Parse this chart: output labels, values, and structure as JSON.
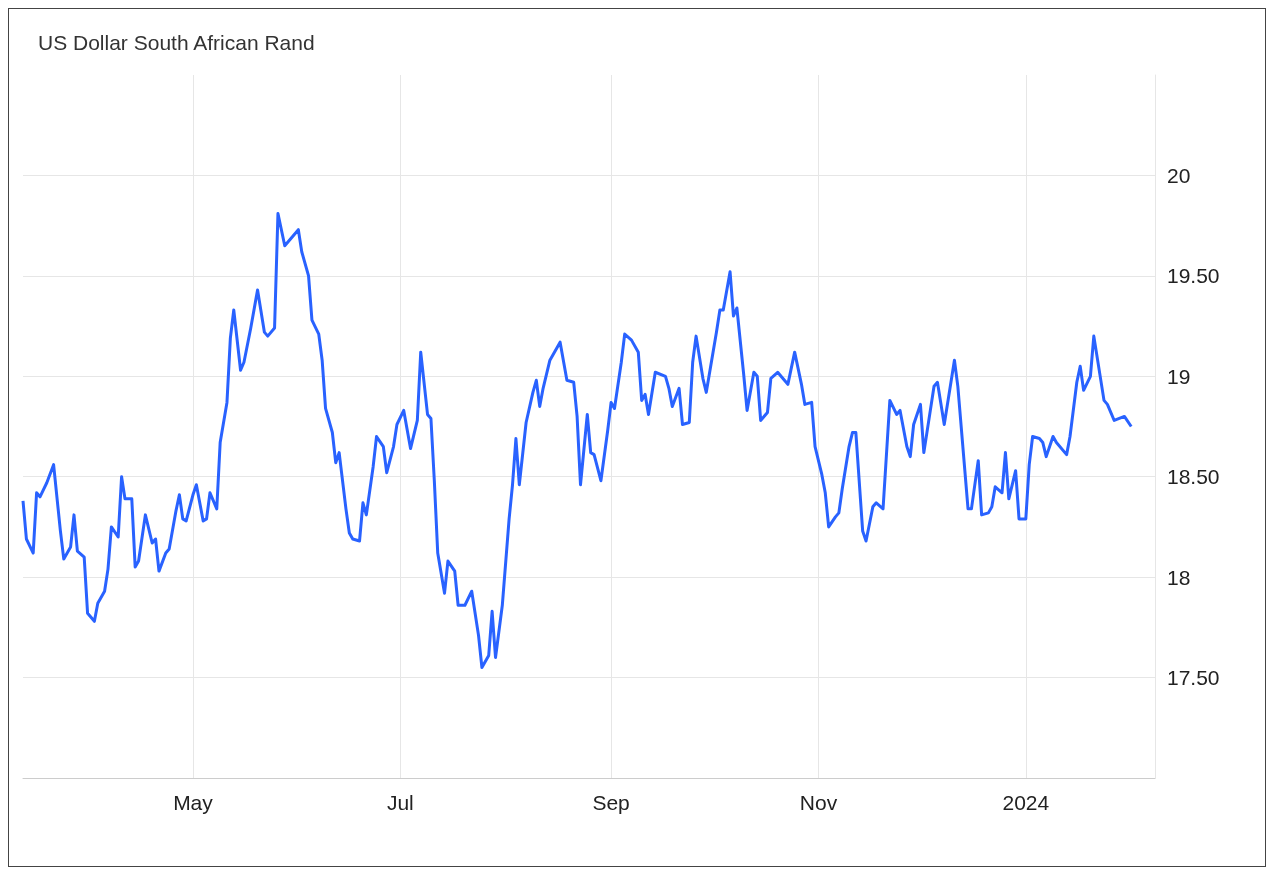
{
  "chart_data": {
    "type": "line",
    "title": "US Dollar South African Rand",
    "color": "#2962ff",
    "grid": true,
    "x": [
      "2023-03-12",
      "2023-03-13",
      "2023-03-15",
      "2023-03-16",
      "2023-03-17",
      "2023-03-19",
      "2023-03-21",
      "2023-03-23",
      "2023-03-24",
      "2023-03-26",
      "2023-03-27",
      "2023-03-28",
      "2023-03-30",
      "2023-03-31",
      "2023-04-02",
      "2023-04-03",
      "2023-04-05",
      "2023-04-06",
      "2023-04-07",
      "2023-04-09",
      "2023-04-10",
      "2023-04-11",
      "2023-04-13",
      "2023-04-14",
      "2023-04-15",
      "2023-04-17",
      "2023-04-19",
      "2023-04-20",
      "2023-04-21",
      "2023-04-23",
      "2023-04-24",
      "2023-04-26",
      "2023-04-27",
      "2023-04-28",
      "2023-04-29",
      "2023-05-01",
      "2023-05-02",
      "2023-05-04",
      "2023-05-05",
      "2023-05-06",
      "2023-05-08",
      "2023-05-09",
      "2023-05-11",
      "2023-05-12",
      "2023-05-13",
      "2023-05-15",
      "2023-05-16",
      "2023-05-18",
      "2023-05-20",
      "2023-05-22",
      "2023-05-23",
      "2023-05-25",
      "2023-05-26",
      "2023-05-28",
      "2023-06-01",
      "2023-06-02",
      "2023-06-04",
      "2023-06-05",
      "2023-06-07",
      "2023-06-08",
      "2023-06-09",
      "2023-06-11",
      "2023-06-12",
      "2023-06-13",
      "2023-06-15",
      "2023-06-16",
      "2023-06-17",
      "2023-06-19",
      "2023-06-20",
      "2023-06-21",
      "2023-06-23",
      "2023-06-24",
      "2023-06-26",
      "2023-06-27",
      "2023-06-29",
      "2023-06-30",
      "2023-07-02",
      "2023-07-04",
      "2023-07-06",
      "2023-07-07",
      "2023-07-09",
      "2023-07-10",
      "2023-07-11",
      "2023-07-12",
      "2023-07-14",
      "2023-07-15",
      "2023-07-17",
      "2023-07-18",
      "2023-07-20",
      "2023-07-22",
      "2023-07-24",
      "2023-07-25",
      "2023-07-27",
      "2023-07-28",
      "2023-07-29",
      "2023-07-31",
      "2023-08-02",
      "2023-08-03",
      "2023-08-04",
      "2023-08-05",
      "2023-08-07",
      "2023-08-09",
      "2023-08-10",
      "2023-08-11",
      "2023-08-12",
      "2023-08-14",
      "2023-08-17",
      "2023-08-19",
      "2023-08-21",
      "2023-08-22",
      "2023-08-23",
      "2023-08-25",
      "2023-08-26",
      "2023-08-27",
      "2023-08-29",
      "2023-08-31",
      "2023-09-01",
      "2023-09-02",
      "2023-09-04",
      "2023-09-05",
      "2023-09-07",
      "2023-09-09",
      "2023-09-10",
      "2023-09-11",
      "2023-09-12",
      "2023-09-14",
      "2023-09-17",
      "2023-09-18",
      "2023-09-19",
      "2023-09-21",
      "2023-09-22",
      "2023-09-24",
      "2023-09-25",
      "2023-09-26",
      "2023-09-28",
      "2023-09-29",
      "2023-10-02",
      "2023-10-03",
      "2023-10-04",
      "2023-10-06",
      "2023-10-07",
      "2023-10-08",
      "2023-10-10",
      "2023-10-11",
      "2023-10-13",
      "2023-10-14",
      "2023-10-15",
      "2023-10-17",
      "2023-10-18",
      "2023-10-20",
      "2023-10-23",
      "2023-10-25",
      "2023-10-27",
      "2023-10-28",
      "2023-10-30",
      "2023-10-31",
      "2023-11-02",
      "2023-11-03",
      "2023-11-04",
      "2023-11-06",
      "2023-11-07",
      "2023-11-08",
      "2023-11-10",
      "2023-11-11",
      "2023-11-12",
      "2023-11-14",
      "2023-11-15",
      "2023-11-17",
      "2023-11-18",
      "2023-11-20",
      "2023-11-22",
      "2023-11-24",
      "2023-11-25",
      "2023-11-27",
      "2023-11-28",
      "2023-11-29",
      "2023-12-01",
      "2023-12-02",
      "2023-12-05",
      "2023-12-06",
      "2023-12-08",
      "2023-12-11",
      "2023-12-12",
      "2023-12-15",
      "2023-12-16",
      "2023-12-18",
      "2023-12-19",
      "2023-12-21",
      "2023-12-22",
      "2023-12-23",
      "2023-12-25",
      "2023-12-26",
      "2023-12-27",
      "2023-12-29",
      "2023-12-30",
      "2024-01-01",
      "2024-01-02",
      "2024-01-03",
      "2024-01-05",
      "2024-01-06",
      "2024-01-07",
      "2024-01-09",
      "2024-01-10",
      "2024-01-13",
      "2024-01-14",
      "2024-01-16",
      "2024-01-17",
      "2024-01-18",
      "2024-01-20",
      "2024-01-21",
      "2024-01-24",
      "2024-01-25",
      "2024-01-27",
      "2024-01-30",
      "2024-02-01"
    ],
    "values": [
      18.38,
      18.19,
      18.12,
      18.42,
      18.4,
      18.47,
      18.56,
      18.23,
      18.09,
      18.15,
      18.31,
      18.13,
      18.1,
      17.82,
      17.78,
      17.87,
      17.93,
      18.04,
      18.25,
      18.2,
      18.5,
      18.39,
      18.39,
      18.05,
      18.08,
      18.31,
      18.17,
      18.19,
      18.03,
      18.12,
      18.14,
      18.33,
      18.41,
      18.29,
      18.28,
      18.41,
      18.46,
      18.28,
      18.29,
      18.42,
      18.34,
      18.67,
      18.87,
      19.19,
      19.33,
      19.03,
      19.07,
      19.24,
      19.43,
      19.22,
      19.2,
      19.24,
      19.81,
      19.65,
      19.73,
      19.62,
      19.5,
      19.28,
      19.21,
      19.08,
      18.84,
      18.72,
      18.57,
      18.62,
      18.34,
      18.22,
      18.19,
      18.18,
      18.37,
      18.31,
      18.55,
      18.7,
      18.65,
      18.52,
      18.65,
      18.76,
      18.83,
      18.64,
      18.78,
      19.12,
      18.81,
      18.79,
      18.48,
      18.12,
      17.92,
      18.08,
      18.03,
      17.86,
      17.86,
      17.93,
      17.71,
      17.55,
      17.61,
      17.83,
      17.6,
      17.86,
      18.29,
      18.46,
      18.69,
      18.46,
      18.77,
      18.92,
      18.98,
      18.85,
      18.94,
      19.08,
      19.17,
      18.98,
      18.97,
      18.8,
      18.46,
      18.81,
      18.62,
      18.61,
      18.48,
      18.73,
      18.87,
      18.84,
      19.07,
      19.21,
      19.18,
      19.12,
      18.88,
      18.91,
      18.81,
      19.02,
      19.0,
      18.94,
      18.85,
      18.94,
      18.76,
      18.77,
      19.07,
      19.2,
      18.99,
      18.92,
      19.22,
      19.33,
      19.33,
      19.52,
      19.3,
      19.34,
      19.01,
      18.83,
      19.02,
      19.0,
      18.78,
      18.82,
      18.99,
      19.02,
      18.96,
      19.12,
      18.96,
      18.86,
      18.87,
      18.65,
      18.51,
      18.42,
      18.25,
      18.3,
      18.32,
      18.44,
      18.65,
      18.72,
      18.72,
      18.23,
      18.18,
      18.35,
      18.37,
      18.34,
      18.88,
      18.81,
      18.83,
      18.65,
      18.6,
      18.76,
      18.86,
      18.62,
      18.95,
      18.97,
      18.76,
      19.08,
      18.95,
      18.34,
      18.34,
      18.58,
      18.31,
      18.32,
      18.35,
      18.45,
      18.42,
      18.62,
      18.39,
      18.53,
      18.29,
      18.29,
      18.56,
      18.7,
      18.69,
      18.67,
      18.6,
      18.7,
      18.67,
      18.61,
      18.7,
      18.97,
      19.05,
      18.93,
      19.0,
      19.2,
      18.88,
      18.86,
      18.78,
      18.8,
      18.75
    ],
    "xlim": [
      "2023-03-12",
      "2024-02-08"
    ],
    "xticks": [
      {
        "value": "2023-05-01",
        "label": "May"
      },
      {
        "value": "2023-07-01",
        "label": "Jul"
      },
      {
        "value": "2023-09-01",
        "label": "Sep"
      },
      {
        "value": "2023-11-01",
        "label": "Nov"
      },
      {
        "value": "2024-01-01",
        "label": "2024"
      }
    ],
    "ylim": [
      17,
      20.5
    ],
    "yticks": [
      {
        "value": 17.5,
        "label": "17.50"
      },
      18,
      {
        "value": 18.5,
        "label": "18.50"
      },
      19,
      {
        "value": 19.5,
        "label": "19.50"
      },
      20
    ]
  }
}
